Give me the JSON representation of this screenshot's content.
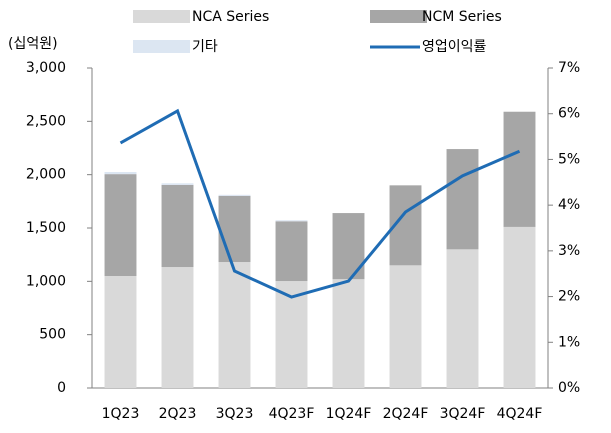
{
  "chart_data": {
    "type": "bar_line",
    "y_unit": "(십억원)",
    "categories": [
      "1Q23",
      "2Q23",
      "3Q23",
      "4Q23F",
      "1Q24F",
      "2Q24F",
      "3Q24F",
      "4Q24F"
    ],
    "series": [
      {
        "name": "NCA Series",
        "color": "#d9d9d9",
        "values": [
          1050,
          1134,
          1181,
          1003,
          1020,
          1150,
          1300,
          1510
        ]
      },
      {
        "name": "NCM Series",
        "color": "#a6a6a6",
        "values": [
          955,
          770,
          620,
          560,
          620,
          750,
          940,
          1080
        ]
      },
      {
        "name": "기타",
        "color": "#dce6f2",
        "values": [
          20,
          15,
          10,
          10,
          0,
          0,
          0,
          0
        ]
      },
      {
        "name": "영업이익률",
        "color": "#1f6cb4",
        "axis": "y2",
        "values": [
          5.36,
          6.06,
          2.56,
          1.99,
          2.34,
          3.85,
          4.64,
          5.18
        ]
      }
    ],
    "ylim": [
      0,
      3000
    ],
    "yticks": [
      0,
      500,
      {
        "value": 1000,
        "label": "1,000"
      },
      {
        "value": 1500,
        "label": "1,500"
      },
      {
        "value": 2000,
        "label": "2,000"
      },
      {
        "value": 2500,
        "label": "2,500"
      },
      {
        "value": 3000,
        "label": "3,000"
      }
    ],
    "y2lim": [
      0,
      7
    ],
    "y2ticks": [
      {
        "value": 0,
        "label": "0%"
      },
      {
        "value": 1,
        "label": "1%"
      },
      {
        "value": 2,
        "label": "2%"
      },
      {
        "value": 3,
        "label": "3%"
      },
      {
        "value": 4,
        "label": "4%"
      },
      {
        "value": 5,
        "label": "5%"
      },
      {
        "value": 6,
        "label": "6%"
      },
      {
        "value": 7,
        "label": "7%"
      }
    ],
    "grid": false
  }
}
